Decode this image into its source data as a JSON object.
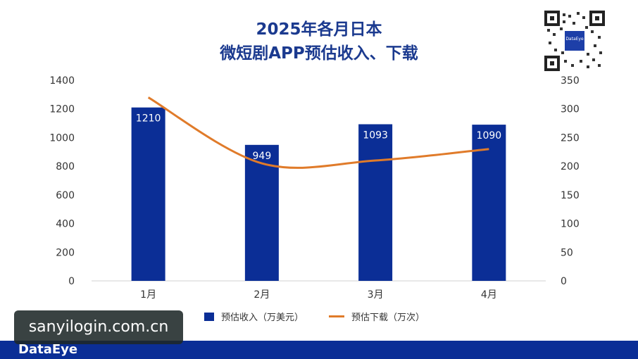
{
  "header": {
    "title_line1": "2025年各月日本",
    "title_line2": "微短剧APP预估收入、下载"
  },
  "qr_badge": {
    "text": "DataEye"
  },
  "legend": {
    "bar_label": "预估收入（万美元）",
    "line_label": "预估下载（万次）"
  },
  "watermark": {
    "text": "sanyilogin.com.cn"
  },
  "footer": {
    "brand": "DataEye"
  },
  "chart_data": {
    "type": "bar",
    "categories": [
      "1月",
      "2月",
      "3月",
      "4月"
    ],
    "series": [
      {
        "name": "预估收入（万美元）",
        "type": "bar",
        "axis": "left",
        "values": [
          1210,
          949,
          1093,
          1090
        ],
        "color": "#0b2e96"
      },
      {
        "name": "预估下载（万次）",
        "type": "line",
        "axis": "right",
        "values": [
          320,
          205,
          210,
          230
        ],
        "color": "#e07b2a"
      }
    ],
    "left_axis": {
      "ylim": [
        0,
        1400
      ],
      "ticks": [
        0,
        200,
        400,
        600,
        800,
        1000,
        1200,
        1400
      ]
    },
    "right_axis": {
      "ylim": [
        0,
        350
      ],
      "ticks": [
        0,
        50,
        100,
        150,
        200,
        250,
        300,
        350
      ]
    },
    "grid": false,
    "legend_position": "bottom"
  }
}
